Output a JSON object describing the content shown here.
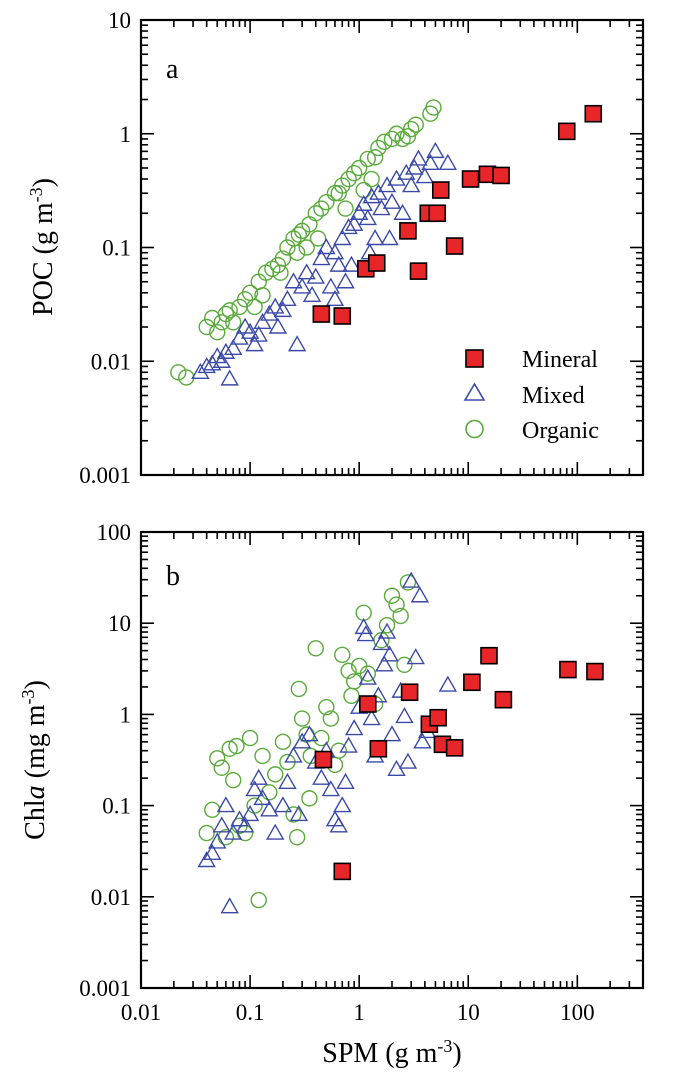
{
  "colors": {
    "mineral_fill": "#e8262a",
    "mineral_edge": "#000000",
    "mixed": "#3b4aa8",
    "organic": "#5aaa3c"
  },
  "chart_data": [
    {
      "type": "scatter",
      "panel_label": "a",
      "xlabel": "SPM (g m-3)",
      "ylabel": "POC (g m-3)",
      "x_scale": "log",
      "y_scale": "log",
      "xlim": [
        0.01,
        400
      ],
      "ylim": [
        0.001,
        10
      ],
      "y_tick_labels": [
        "0.001",
        "0.01",
        "0.1",
        "1",
        "10"
      ],
      "legend": {
        "position": "lower-right",
        "entries": [
          "Mineral",
          "Mixed",
          "Organic"
        ]
      },
      "series": [
        {
          "name": "Mineral",
          "marker": "square",
          "points": [
            [
              0.45,
              0.026
            ],
            [
              0.7,
              0.025
            ],
            [
              1.15,
              0.065
            ],
            [
              1.45,
              0.073
            ],
            [
              2.8,
              0.14
            ],
            [
              3.5,
              0.062
            ],
            [
              4.3,
              0.2
            ],
            [
              5.2,
              0.2
            ],
            [
              5.6,
              0.32
            ],
            [
              7.5,
              0.103
            ],
            [
              10.5,
              0.4
            ],
            [
              15,
              0.44
            ],
            [
              20,
              0.43
            ],
            [
              80,
              1.05
            ],
            [
              140,
              1.5
            ]
          ]
        },
        {
          "name": "Mixed",
          "marker": "triangle",
          "points": [
            [
              0.035,
              0.008
            ],
            [
              0.04,
              0.009
            ],
            [
              0.045,
              0.0095
            ],
            [
              0.05,
              0.011
            ],
            [
              0.055,
              0.01
            ],
            [
              0.06,
              0.012
            ],
            [
              0.065,
              0.007
            ],
            [
              0.07,
              0.013
            ],
            [
              0.08,
              0.016
            ],
            [
              0.09,
              0.02
            ],
            [
              0.1,
              0.018
            ],
            [
              0.11,
              0.014
            ],
            [
              0.12,
              0.017
            ],
            [
              0.13,
              0.022
            ],
            [
              0.15,
              0.026
            ],
            [
              0.17,
              0.03
            ],
            [
              0.18,
              0.02
            ],
            [
              0.2,
              0.028
            ],
            [
              0.22,
              0.035
            ],
            [
              0.25,
              0.05
            ],
            [
              0.27,
              0.014
            ],
            [
              0.3,
              0.045
            ],
            [
              0.33,
              0.06
            ],
            [
              0.37,
              0.038
            ],
            [
              0.4,
              0.055
            ],
            [
              0.45,
              0.08
            ],
            [
              0.5,
              0.1
            ],
            [
              0.55,
              0.045
            ],
            [
              0.6,
              0.09
            ],
            [
              0.65,
              0.07
            ],
            [
              0.7,
              0.12
            ],
            [
              0.8,
              0.15
            ],
            [
              0.85,
              0.07
            ],
            [
              0.9,
              0.16
            ],
            [
              1.0,
              0.2
            ],
            [
              1.1,
              0.24
            ],
            [
              1.2,
              0.18
            ],
            [
              1.3,
              0.28
            ],
            [
              1.4,
              0.12
            ],
            [
              1.5,
              0.3
            ],
            [
              1.6,
              0.22
            ],
            [
              1.8,
              0.35
            ],
            [
              2.0,
              0.25
            ],
            [
              2.2,
              0.4
            ],
            [
              2.5,
              0.2
            ],
            [
              2.7,
              0.45
            ],
            [
              3.0,
              0.35
            ],
            [
              3.2,
              0.5
            ],
            [
              3.5,
              0.6
            ],
            [
              4.0,
              0.42
            ],
            [
              4.5,
              0.55
            ],
            [
              5.0,
              0.7
            ],
            [
              6.5,
              0.55
            ],
            [
              1.9,
              0.12
            ],
            [
              0.6,
              0.035
            ],
            [
              0.75,
              0.05
            ],
            [
              1.25,
              0.09
            ]
          ]
        },
        {
          "name": "Organic",
          "marker": "circle",
          "points": [
            [
              0.022,
              0.008
            ],
            [
              0.026,
              0.0072
            ],
            [
              0.04,
              0.02
            ],
            [
              0.045,
              0.024
            ],
            [
              0.05,
              0.018
            ],
            [
              0.055,
              0.022
            ],
            [
              0.06,
              0.026
            ],
            [
              0.065,
              0.028
            ],
            [
              0.07,
              0.022
            ],
            [
              0.08,
              0.03
            ],
            [
              0.09,
              0.035
            ],
            [
              0.1,
              0.04
            ],
            [
              0.12,
              0.05
            ],
            [
              0.14,
              0.06
            ],
            [
              0.16,
              0.065
            ],
            [
              0.18,
              0.07
            ],
            [
              0.2,
              0.08
            ],
            [
              0.22,
              0.1
            ],
            [
              0.25,
              0.12
            ],
            [
              0.28,
              0.13
            ],
            [
              0.3,
              0.14
            ],
            [
              0.35,
              0.16
            ],
            [
              0.4,
              0.2
            ],
            [
              0.45,
              0.22
            ],
            [
              0.5,
              0.25
            ],
            [
              0.6,
              0.3
            ],
            [
              0.7,
              0.35
            ],
            [
              0.8,
              0.4
            ],
            [
              0.9,
              0.45
            ],
            [
              1.0,
              0.5
            ],
            [
              1.2,
              0.6
            ],
            [
              1.4,
              0.62
            ],
            [
              1.5,
              0.75
            ],
            [
              1.7,
              0.85
            ],
            [
              2.0,
              0.9
            ],
            [
              2.2,
              1.0
            ],
            [
              2.5,
              0.9
            ],
            [
              2.8,
              0.95
            ],
            [
              3.0,
              1.1
            ],
            [
              3.3,
              1.2
            ],
            [
              4.5,
              1.5
            ],
            [
              4.8,
              1.7
            ],
            [
              0.65,
              0.3
            ],
            [
              0.75,
              0.22
            ],
            [
              0.42,
              0.12
            ],
            [
              0.33,
              0.1
            ],
            [
              0.27,
              0.09
            ],
            [
              0.19,
              0.06
            ],
            [
              0.11,
              0.03
            ],
            [
              0.13,
              0.038
            ],
            [
              1.1,
              0.32
            ],
            [
              1.3,
              0.4
            ]
          ]
        }
      ]
    },
    {
      "type": "scatter",
      "panel_label": "b",
      "xlabel": "SPM (g m-3)",
      "ylabel": "Chla (mg m-3)",
      "x_scale": "log",
      "y_scale": "log",
      "xlim": [
        0.01,
        400
      ],
      "ylim": [
        0.001,
        100
      ],
      "x_tick_labels": [
        "0.01",
        "0.1",
        "1",
        "10",
        "100"
      ],
      "y_tick_labels": [
        "0.001",
        "0.01",
        "0.1",
        "1",
        "10",
        "100"
      ],
      "series": [
        {
          "name": "Mineral",
          "marker": "square",
          "points": [
            [
              0.47,
              0.32
            ],
            [
              0.7,
              0.019
            ],
            [
              1.2,
              1.3
            ],
            [
              1.5,
              0.42
            ],
            [
              2.9,
              1.75
            ],
            [
              4.4,
              0.78
            ],
            [
              5.3,
              0.92
            ],
            [
              5.8,
              0.47
            ],
            [
              7.5,
              0.43
            ],
            [
              10.8,
              2.25
            ],
            [
              15.5,
              4.4
            ],
            [
              21,
              1.45
            ],
            [
              82,
              3.1
            ],
            [
              145,
              2.95
            ]
          ]
        },
        {
          "name": "Mixed",
          "marker": "triangle",
          "points": [
            [
              0.04,
              0.025
            ],
            [
              0.045,
              0.03
            ],
            [
              0.05,
              0.04
            ],
            [
              0.055,
              0.06
            ],
            [
              0.06,
              0.1
            ],
            [
              0.065,
              0.0078
            ],
            [
              0.07,
              0.05
            ],
            [
              0.08,
              0.07
            ],
            [
              0.09,
              0.06
            ],
            [
              0.1,
              0.08
            ],
            [
              0.11,
              0.15
            ],
            [
              0.12,
              0.2
            ],
            [
              0.13,
              0.12
            ],
            [
              0.15,
              0.09
            ],
            [
              0.17,
              0.05
            ],
            [
              0.2,
              0.1
            ],
            [
              0.22,
              0.18
            ],
            [
              0.25,
              0.35
            ],
            [
              0.28,
              0.08
            ],
            [
              0.3,
              0.5
            ],
            [
              0.35,
              0.6
            ],
            [
              0.4,
              0.3
            ],
            [
              0.45,
              0.2
            ],
            [
              0.5,
              0.4
            ],
            [
              0.55,
              0.15
            ],
            [
              0.6,
              0.07
            ],
            [
              0.65,
              0.06
            ],
            [
              0.7,
              0.1
            ],
            [
              0.75,
              0.18
            ],
            [
              0.8,
              0.45
            ],
            [
              0.9,
              0.7
            ],
            [
              1.0,
              1.2
            ],
            [
              1.1,
              9.0
            ],
            [
              1.15,
              7.5
            ],
            [
              1.2,
              2.5
            ],
            [
              1.3,
              0.9
            ],
            [
              1.4,
              0.35
            ],
            [
              1.5,
              1.6
            ],
            [
              1.6,
              6.0
            ],
            [
              1.7,
              3.5
            ],
            [
              1.8,
              8.0
            ],
            [
              1.9,
              4.5
            ],
            [
              2.0,
              0.6
            ],
            [
              2.2,
              0.25
            ],
            [
              2.4,
              1.8
            ],
            [
              2.6,
              0.95
            ],
            [
              2.8,
              0.3
            ],
            [
              3.0,
              29.0
            ],
            [
              3.3,
              4.2
            ],
            [
              3.6,
              20.0
            ],
            [
              3.8,
              0.5
            ],
            [
              4.2,
              0.65
            ],
            [
              6.5,
              2.1
            ]
          ]
        },
        {
          "name": "Organic",
          "marker": "circle",
          "points": [
            [
              0.04,
              0.05
            ],
            [
              0.045,
              0.09
            ],
            [
              0.05,
              0.33
            ],
            [
              0.055,
              0.26
            ],
            [
              0.06,
              0.045
            ],
            [
              0.065,
              0.42
            ],
            [
              0.07,
              0.19
            ],
            [
              0.075,
              0.45
            ],
            [
              0.08,
              0.06
            ],
            [
              0.09,
              0.05
            ],
            [
              0.1,
              0.55
            ],
            [
              0.11,
              0.1
            ],
            [
              0.12,
              0.0092
            ],
            [
              0.13,
              0.35
            ],
            [
              0.15,
              0.14
            ],
            [
              0.17,
              0.22
            ],
            [
              0.2,
              0.5
            ],
            [
              0.22,
              0.3
            ],
            [
              0.25,
              0.08
            ],
            [
              0.28,
              1.9
            ],
            [
              0.3,
              0.9
            ],
            [
              0.33,
              0.6
            ],
            [
              0.36,
              0.35
            ],
            [
              0.4,
              5.3
            ],
            [
              0.45,
              0.55
            ],
            [
              0.5,
              1.2
            ],
            [
              0.55,
              0.9
            ],
            [
              0.6,
              0.28
            ],
            [
              0.65,
              0.4
            ],
            [
              0.7,
              4.5
            ],
            [
              0.8,
              3.0
            ],
            [
              0.9,
              2.3
            ],
            [
              1.0,
              3.4
            ],
            [
              1.1,
              13.0
            ],
            [
              1.2,
              2.8
            ],
            [
              1.4,
              1.3
            ],
            [
              1.6,
              6.5
            ],
            [
              1.8,
              9.5
            ],
            [
              2.0,
              20.0
            ],
            [
              2.2,
              16.0
            ],
            [
              2.4,
              12.0
            ],
            [
              2.6,
              3.5
            ],
            [
              2.8,
              28.0
            ],
            [
              0.85,
              1.6
            ],
            [
              0.35,
              0.12
            ],
            [
              0.27,
              0.045
            ]
          ]
        }
      ]
    }
  ]
}
